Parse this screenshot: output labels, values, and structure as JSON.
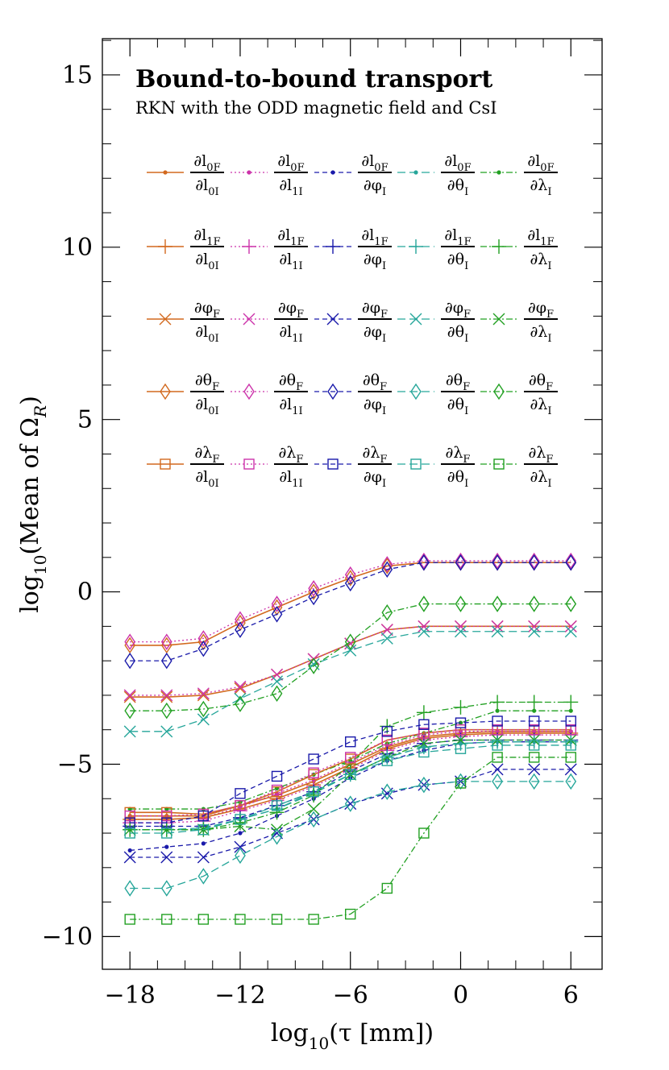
{
  "chart_data": {
    "type": "line",
    "title": "Bound-to-bound transport",
    "subtitle": "RKN with the ODD magnetic field and CsI",
    "xlabel": {
      "prefix": "log",
      "sub": "10",
      "rest": "(τ [mm])"
    },
    "ylabel": {
      "prefix": "log",
      "sub": "10",
      "mid": "(Mean of Ω",
      "sub2": "R",
      "end": ")"
    },
    "xlim": [
      -19.5,
      7.7
    ],
    "ylim": [
      -10.95,
      16.05
    ],
    "x_ticks": [
      -18,
      -12,
      -6,
      0,
      6
    ],
    "x_tick_labels": [
      "−18",
      "−12",
      "−6",
      "0",
      "6"
    ],
    "y_ticks": [
      15,
      10,
      5,
      0,
      -5,
      -10
    ],
    "y_tick_labels": [
      "15",
      "10",
      "5",
      "0",
      "−5",
      "−10"
    ],
    "colors": {
      "l0I": "#d2691e",
      "l1I": "#cc33aa",
      "phiI": "#1a1aaa",
      "thetaI": "#26a69a",
      "lambdaI": "#22a022"
    },
    "legend_rows": [
      {
        "marker": "dot",
        "entries": [
          {
            "num": "∂l",
            "num_sub": "0F",
            "den": "∂l",
            "den_sub": "0I",
            "color_key": "l0I",
            "style": "solid"
          },
          {
            "num": "∂l",
            "num_sub": "0F",
            "den": "∂l",
            "den_sub": "1I",
            "color_key": "l1I",
            "style": "dotted"
          },
          {
            "num": "∂l",
            "num_sub": "0F",
            "den": "∂φ",
            "den_sub": "I",
            "color_key": "phiI",
            "style": "dashed"
          },
          {
            "num": "∂l",
            "num_sub": "0F",
            "den": "∂θ",
            "den_sub": "I",
            "color_key": "thetaI",
            "style": "longdash"
          },
          {
            "num": "∂l",
            "num_sub": "0F",
            "den": "∂λ",
            "den_sub": "I",
            "color_key": "lambdaI",
            "style": "dashdot"
          }
        ]
      },
      {
        "marker": "plus",
        "entries": [
          {
            "num": "∂l",
            "num_sub": "1F",
            "den": "∂l",
            "den_sub": "0I",
            "color_key": "l0I",
            "style": "solid"
          },
          {
            "num": "∂l",
            "num_sub": "1F",
            "den": "∂l",
            "den_sub": "1I",
            "color_key": "l1I",
            "style": "dotted"
          },
          {
            "num": "∂l",
            "num_sub": "1F",
            "den": "∂φ",
            "den_sub": "I",
            "color_key": "phiI",
            "style": "dashed"
          },
          {
            "num": "∂l",
            "num_sub": "1F",
            "den": "∂θ",
            "den_sub": "I",
            "color_key": "thetaI",
            "style": "longdash"
          },
          {
            "num": "∂l",
            "num_sub": "1F",
            "den": "∂λ",
            "den_sub": "I",
            "color_key": "lambdaI",
            "style": "dashdot"
          }
        ]
      },
      {
        "marker": "cross",
        "entries": [
          {
            "num": "∂φ",
            "num_sub": "F",
            "den": "∂l",
            "den_sub": "0I",
            "color_key": "l0I",
            "style": "solid"
          },
          {
            "num": "∂φ",
            "num_sub": "F",
            "den": "∂l",
            "den_sub": "1I",
            "color_key": "l1I",
            "style": "dotted"
          },
          {
            "num": "∂φ",
            "num_sub": "F",
            "den": "∂φ",
            "den_sub": "I",
            "color_key": "phiI",
            "style": "dashed"
          },
          {
            "num": "∂φ",
            "num_sub": "F",
            "den": "∂θ",
            "den_sub": "I",
            "color_key": "thetaI",
            "style": "longdash"
          },
          {
            "num": "∂φ",
            "num_sub": "F",
            "den": "∂λ",
            "den_sub": "I",
            "color_key": "lambdaI",
            "style": "dashdot"
          }
        ]
      },
      {
        "marker": "diamond",
        "entries": [
          {
            "num": "∂θ",
            "num_sub": "F",
            "den": "∂l",
            "den_sub": "0I",
            "color_key": "l0I",
            "style": "solid"
          },
          {
            "num": "∂θ",
            "num_sub": "F",
            "den": "∂l",
            "den_sub": "1I",
            "color_key": "l1I",
            "style": "dotted"
          },
          {
            "num": "∂θ",
            "num_sub": "F",
            "den": "∂φ",
            "den_sub": "I",
            "color_key": "phiI",
            "style": "dashed"
          },
          {
            "num": "∂θ",
            "num_sub": "F",
            "den": "∂θ",
            "den_sub": "I",
            "color_key": "thetaI",
            "style": "longdash"
          },
          {
            "num": "∂θ",
            "num_sub": "F",
            "den": "∂λ",
            "den_sub": "I",
            "color_key": "lambdaI",
            "style": "dashdot"
          }
        ]
      },
      {
        "marker": "square",
        "entries": [
          {
            "num": "∂λ",
            "num_sub": "F",
            "den": "∂l",
            "den_sub": "0I",
            "color_key": "l0I",
            "style": "solid"
          },
          {
            "num": "∂λ",
            "num_sub": "F",
            "den": "∂l",
            "den_sub": "1I",
            "color_key": "l1I",
            "style": "dotted"
          },
          {
            "num": "∂λ",
            "num_sub": "F",
            "den": "∂φ",
            "den_sub": "I",
            "color_key": "phiI",
            "style": "dashed"
          },
          {
            "num": "∂λ",
            "num_sub": "F",
            "den": "∂θ",
            "den_sub": "I",
            "color_key": "thetaI",
            "style": "longdash"
          },
          {
            "num": "∂λ",
            "num_sub": "F",
            "den": "∂λ",
            "den_sub": "I",
            "color_key": "lambdaI",
            "style": "dashdot"
          }
        ]
      }
    ],
    "x": [
      -18,
      -16,
      -14,
      -12,
      -10,
      -8,
      -6,
      -4,
      -2,
      0,
      2,
      4,
      6
    ],
    "series": [
      {
        "name": "dl0F/dl0I",
        "marker": "dot",
        "color_key": "l0I",
        "style": "solid",
        "values": [
          -6.5,
          -6.5,
          -6.5,
          -6.2,
          -5.9,
          -5.5,
          -5.0,
          -4.5,
          -4.2,
          -4.1,
          -4.05,
          -4.05,
          -4.05
        ]
      },
      {
        "name": "dl0F/dl1I",
        "marker": "dot",
        "color_key": "l1I",
        "style": "dotted",
        "values": [
          -6.6,
          -6.6,
          -6.55,
          -6.25,
          -5.85,
          -5.45,
          -4.95,
          -4.45,
          -4.15,
          -4.05,
          -4.05,
          -4.05,
          -4.05
        ]
      },
      {
        "name": "dl0F/dphiI",
        "marker": "dot",
        "color_key": "phiI",
        "style": "dashed",
        "values": [
          -7.5,
          -7.4,
          -7.3,
          -7.0,
          -6.5,
          -6.0,
          -5.4,
          -4.9,
          -4.6,
          -4.4,
          -4.35,
          -4.35,
          -4.35
        ]
      },
      {
        "name": "dl0F/dthetaI",
        "marker": "dot",
        "color_key": "thetaI",
        "style": "longdash",
        "values": [
          -6.9,
          -6.9,
          -6.9,
          -6.6,
          -6.3,
          -5.8,
          -5.3,
          -4.8,
          -4.5,
          -4.4,
          -4.35,
          -4.35,
          -4.35
        ]
      },
      {
        "name": "dl0F/dlambdaI",
        "marker": "dot",
        "color_key": "lambdaI",
        "style": "dashdot",
        "values": [
          -6.3,
          -6.3,
          -6.3,
          -6.1,
          -5.7,
          -5.3,
          -4.9,
          -4.4,
          -4.1,
          -3.8,
          -3.45,
          -3.45,
          -3.45
        ]
      },
      {
        "name": "dl1F/dl0I",
        "marker": "plus",
        "color_key": "l0I",
        "style": "solid",
        "values": [
          -6.6,
          -6.6,
          -6.55,
          -6.3,
          -6.0,
          -5.6,
          -5.1,
          -4.55,
          -4.25,
          -4.15,
          -4.1,
          -4.1,
          -4.1
        ]
      },
      {
        "name": "dl1F/dl1I",
        "marker": "plus",
        "color_key": "l1I",
        "style": "dotted",
        "values": [
          -6.7,
          -6.7,
          -6.65,
          -6.35,
          -6.05,
          -5.65,
          -5.15,
          -4.6,
          -4.3,
          -4.2,
          -4.15,
          -4.15,
          -4.15
        ]
      },
      {
        "name": "dl1F/dphiI",
        "marker": "plus",
        "color_key": "phiI",
        "style": "dashed",
        "values": [
          -6.8,
          -6.8,
          -6.8,
          -6.55,
          -6.2,
          -5.8,
          -5.2,
          -4.7,
          -4.4,
          -4.3,
          -4.3,
          -4.3,
          -4.3
        ]
      },
      {
        "name": "dl1F/dthetaI",
        "marker": "plus",
        "color_key": "thetaI",
        "style": "longdash",
        "values": [
          -6.9,
          -6.9,
          -6.85,
          -6.6,
          -6.3,
          -5.85,
          -5.3,
          -4.8,
          -4.5,
          -4.4,
          -4.35,
          -4.35,
          -4.35
        ]
      },
      {
        "name": "dl1F/dlambdaI",
        "marker": "plus",
        "color_key": "lambdaI",
        "style": "dashdot",
        "values": [
          -6.9,
          -6.9,
          -6.9,
          -6.7,
          -6.4,
          -5.9,
          -5.0,
          -3.9,
          -3.5,
          -3.35,
          -3.2,
          -3.2,
          -3.2
        ]
      },
      {
        "name": "dphiF/dl0I",
        "marker": "cross",
        "color_key": "l0I",
        "style": "solid",
        "values": [
          -3.05,
          -3.05,
          -3.0,
          -2.8,
          -2.4,
          -1.95,
          -1.5,
          -1.1,
          -1.0,
          -1.0,
          -1.0,
          -1.0,
          -1.0
        ]
      },
      {
        "name": "dphiF/dl1I",
        "marker": "cross",
        "color_key": "l1I",
        "style": "dotted",
        "values": [
          -3.0,
          -3.0,
          -2.95,
          -2.75,
          -2.4,
          -1.95,
          -1.5,
          -1.1,
          -1.0,
          -1.0,
          -1.0,
          -1.0,
          -1.0
        ]
      },
      {
        "name": "dphiF/dphiI",
        "marker": "cross",
        "color_key": "phiI",
        "style": "dashed",
        "values": [
          -7.7,
          -7.7,
          -7.7,
          -7.4,
          -7.0,
          -6.6,
          -6.15,
          -5.85,
          -5.6,
          -5.5,
          -5.15,
          -5.15,
          -5.15
        ]
      },
      {
        "name": "dphiF/dthetaI",
        "marker": "cross",
        "color_key": "thetaI",
        "style": "longdash",
        "values": [
          -4.05,
          -4.05,
          -3.7,
          -3.1,
          -2.6,
          -2.1,
          -1.7,
          -1.35,
          -1.15,
          -1.15,
          -1.15,
          -1.15,
          -1.15
        ]
      },
      {
        "name": "dphiF/dlambdaI",
        "marker": "cross",
        "color_key": "lambdaI",
        "style": "dashdot",
        "values": [
          -6.9,
          -6.9,
          -6.9,
          -6.8,
          -6.9,
          -6.3,
          -5.3,
          -4.8,
          -4.4,
          -4.3,
          -4.3,
          -4.3,
          -4.3
        ]
      },
      {
        "name": "dthetaF/dl0I",
        "marker": "diamond",
        "color_key": "l0I",
        "style": "solid",
        "values": [
          -1.55,
          -1.55,
          -1.45,
          -0.9,
          -0.45,
          0.0,
          0.4,
          0.75,
          0.85,
          0.85,
          0.85,
          0.85,
          0.85
        ]
      },
      {
        "name": "dthetaF/dl1I",
        "marker": "diamond",
        "color_key": "l1I",
        "style": "dotted",
        "values": [
          -1.45,
          -1.45,
          -1.35,
          -0.8,
          -0.35,
          0.1,
          0.5,
          0.8,
          0.9,
          0.9,
          0.9,
          0.9,
          0.9
        ]
      },
      {
        "name": "dthetaF/dphiI",
        "marker": "diamond",
        "color_key": "phiI",
        "style": "dashed",
        "values": [
          -2.0,
          -2.0,
          -1.65,
          -1.1,
          -0.65,
          -0.15,
          0.25,
          0.65,
          0.85,
          0.85,
          0.85,
          0.85,
          0.85
        ]
      },
      {
        "name": "dthetaF/dthetaI",
        "marker": "diamond",
        "color_key": "thetaI",
        "style": "longdash",
        "values": [
          -8.6,
          -8.6,
          -8.25,
          -7.65,
          -7.1,
          -6.6,
          -6.15,
          -5.8,
          -5.6,
          -5.5,
          -5.5,
          -5.5,
          -5.5
        ]
      },
      {
        "name": "dthetaF/dlambdaI",
        "marker": "diamond",
        "color_key": "lambdaI",
        "style": "dashdot",
        "values": [
          -3.45,
          -3.45,
          -3.4,
          -3.25,
          -2.95,
          -2.15,
          -1.45,
          -0.6,
          -0.35,
          -0.35,
          -0.35,
          -0.35,
          -0.35
        ]
      },
      {
        "name": "dlambdaF/dl0I",
        "marker": "square",
        "color_key": "l0I",
        "style": "solid",
        "values": [
          -6.4,
          -6.4,
          -6.45,
          -6.2,
          -5.8,
          -5.3,
          -4.85,
          -4.3,
          -4.1,
          -4.0,
          -4.0,
          -4.0,
          -4.0
        ]
      },
      {
        "name": "dlambdaF/dl1I",
        "marker": "square",
        "color_key": "l1I",
        "style": "dotted",
        "values": [
          -6.5,
          -6.5,
          -6.45,
          -6.2,
          -5.75,
          -5.25,
          -4.8,
          -4.3,
          -4.1,
          -4.0,
          -4.0,
          -4.0,
          -4.0
        ]
      },
      {
        "name": "dlambdaF/dphiI",
        "marker": "square",
        "color_key": "phiI",
        "style": "dashed",
        "values": [
          -6.7,
          -6.7,
          -6.5,
          -5.85,
          -5.35,
          -4.85,
          -4.35,
          -4.05,
          -3.85,
          -3.8,
          -3.75,
          -3.75,
          -3.75
        ]
      },
      {
        "name": "dlambdaF/dthetaI",
        "marker": "square",
        "color_key": "thetaI",
        "style": "longdash",
        "values": [
          -7.0,
          -7.0,
          -6.9,
          -6.6,
          -6.2,
          -5.8,
          -5.3,
          -4.9,
          -4.65,
          -4.55,
          -4.45,
          -4.45,
          -4.45
        ]
      },
      {
        "name": "dlambdaF/dlambdaI",
        "marker": "square",
        "color_key": "lambdaI",
        "style": "dashdot",
        "values": [
          -9.5,
          -9.5,
          -9.5,
          -9.5,
          -9.5,
          -9.5,
          -9.35,
          -8.6,
          -7.0,
          -5.55,
          -4.8,
          -4.8,
          -4.8
        ]
      }
    ]
  }
}
